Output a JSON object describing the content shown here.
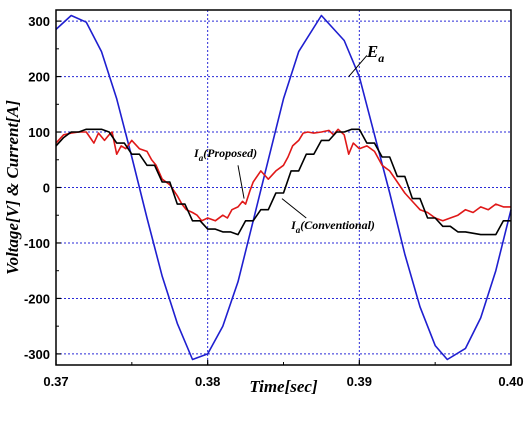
{
  "chart_data": {
    "type": "line",
    "title": "",
    "xlabel": "Time[sec]",
    "ylabel": "Voltage[V] & Current[A]",
    "xlim": [
      0.37,
      0.4
    ],
    "ylim": [
      -320,
      320
    ],
    "x_ticks": [
      0.37,
      0.38,
      0.39,
      0.4
    ],
    "x_tick_labels": [
      "0.37",
      "0.38",
      "0.39",
      "0.40"
    ],
    "y_ticks": [
      -300,
      -200,
      -100,
      0,
      100,
      200,
      300
    ],
    "y_tick_labels": [
      "-300",
      "-200",
      "-100",
      "0",
      "100",
      "200",
      "300"
    ],
    "grid": true,
    "legend": "none",
    "series": [
      {
        "color": "#1f1fd0",
        "points": [
          [
            0.37,
            285
          ],
          [
            0.371,
            310
          ],
          [
            0.372,
            298
          ],
          [
            0.373,
            245
          ],
          [
            0.374,
            160
          ],
          [
            0.375,
            55
          ],
          [
            0.376,
            -55
          ],
          [
            0.377,
            -160
          ],
          [
            0.378,
            -245
          ],
          [
            0.379,
            -310
          ],
          [
            0.38,
            -300
          ],
          [
            0.381,
            -250
          ],
          [
            0.382,
            -170
          ],
          [
            0.383,
            -60
          ],
          [
            0.384,
            50
          ],
          [
            0.385,
            160
          ],
          [
            0.386,
            245
          ],
          [
            0.3875,
            310
          ],
          [
            0.389,
            265
          ],
          [
            0.39,
            200
          ],
          [
            0.391,
            95
          ],
          [
            0.392,
            -10
          ],
          [
            0.393,
            -120
          ],
          [
            0.394,
            -215
          ],
          [
            0.395,
            -285
          ],
          [
            0.3958,
            -310
          ],
          [
            0.397,
            -290
          ],
          [
            0.398,
            -235
          ],
          [
            0.399,
            -150
          ],
          [
            0.4,
            -40
          ]
        ]
      },
      {
        "color": "#e01818",
        "points": [
          [
            0.37,
            80
          ],
          [
            0.3705,
            95
          ],
          [
            0.371,
            98
          ],
          [
            0.3715,
            100
          ],
          [
            0.372,
            100
          ],
          [
            0.3725,
            80
          ],
          [
            0.3728,
            98
          ],
          [
            0.3732,
            85
          ],
          [
            0.3735,
            95
          ],
          [
            0.3737,
            100
          ],
          [
            0.374,
            60
          ],
          [
            0.3743,
            75
          ],
          [
            0.3746,
            70
          ],
          [
            0.375,
            85
          ],
          [
            0.3755,
            70
          ],
          [
            0.376,
            65
          ],
          [
            0.3763,
            50
          ],
          [
            0.3766,
            40
          ],
          [
            0.377,
            15
          ],
          [
            0.3775,
            5
          ],
          [
            0.378,
            -15
          ],
          [
            0.3783,
            -30
          ],
          [
            0.3786,
            -40
          ],
          [
            0.379,
            -45
          ],
          [
            0.3793,
            -50
          ],
          [
            0.3796,
            -60
          ],
          [
            0.38,
            -55
          ],
          [
            0.3805,
            -60
          ],
          [
            0.381,
            -50
          ],
          [
            0.3813,
            -55
          ],
          [
            0.3816,
            -40
          ],
          [
            0.382,
            -35
          ],
          [
            0.3823,
            -25
          ],
          [
            0.3825,
            -30
          ],
          [
            0.3828,
            -5
          ],
          [
            0.383,
            10
          ],
          [
            0.3835,
            30
          ],
          [
            0.384,
            15
          ],
          [
            0.3845,
            30
          ],
          [
            0.385,
            40
          ],
          [
            0.3853,
            55
          ],
          [
            0.3856,
            75
          ],
          [
            0.386,
            85
          ],
          [
            0.3863,
            98
          ],
          [
            0.3866,
            100
          ],
          [
            0.387,
            98
          ],
          [
            0.3875,
            100
          ],
          [
            0.388,
            103
          ],
          [
            0.3883,
            95
          ],
          [
            0.3886,
            105
          ],
          [
            0.389,
            95
          ],
          [
            0.3893,
            60
          ],
          [
            0.3896,
            80
          ],
          [
            0.39,
            70
          ],
          [
            0.3905,
            75
          ],
          [
            0.391,
            65
          ],
          [
            0.3915,
            40
          ],
          [
            0.392,
            30
          ],
          [
            0.3925,
            10
          ],
          [
            0.393,
            -10
          ],
          [
            0.3935,
            -25
          ],
          [
            0.394,
            -40
          ],
          [
            0.3945,
            -45
          ],
          [
            0.395,
            -55
          ],
          [
            0.3955,
            -60
          ],
          [
            0.396,
            -55
          ],
          [
            0.3965,
            -50
          ],
          [
            0.397,
            -40
          ],
          [
            0.3975,
            -45
          ],
          [
            0.398,
            -35
          ],
          [
            0.3985,
            -40
          ],
          [
            0.399,
            -30
          ],
          [
            0.3995,
            -35
          ],
          [
            0.4,
            -35
          ]
        ]
      },
      {
        "color": "#000000",
        "points": [
          [
            0.37,
            75
          ],
          [
            0.3705,
            90
          ],
          [
            0.371,
            100
          ],
          [
            0.3715,
            100
          ],
          [
            0.372,
            105
          ],
          [
            0.373,
            105
          ],
          [
            0.3735,
            100
          ],
          [
            0.374,
            80
          ],
          [
            0.3745,
            80
          ],
          [
            0.375,
            60
          ],
          [
            0.3755,
            60
          ],
          [
            0.376,
            40
          ],
          [
            0.3765,
            40
          ],
          [
            0.377,
            10
          ],
          [
            0.3775,
            10
          ],
          [
            0.378,
            -30
          ],
          [
            0.3785,
            -30
          ],
          [
            0.379,
            -60
          ],
          [
            0.3795,
            -60
          ],
          [
            0.38,
            -75
          ],
          [
            0.3805,
            -75
          ],
          [
            0.381,
            -80
          ],
          [
            0.3815,
            -80
          ],
          [
            0.382,
            -85
          ],
          [
            0.3825,
            -60
          ],
          [
            0.383,
            -60
          ],
          [
            0.3835,
            -40
          ],
          [
            0.384,
            -40
          ],
          [
            0.3845,
            -10
          ],
          [
            0.385,
            -10
          ],
          [
            0.3855,
            30
          ],
          [
            0.386,
            30
          ],
          [
            0.3865,
            60
          ],
          [
            0.387,
            60
          ],
          [
            0.3875,
            85
          ],
          [
            0.388,
            85
          ],
          [
            0.3885,
            100
          ],
          [
            0.389,
            100
          ],
          [
            0.3895,
            105
          ],
          [
            0.39,
            105
          ],
          [
            0.3905,
            80
          ],
          [
            0.391,
            80
          ],
          [
            0.3915,
            55
          ],
          [
            0.392,
            55
          ],
          [
            0.3925,
            20
          ],
          [
            0.393,
            20
          ],
          [
            0.3935,
            -20
          ],
          [
            0.394,
            -20
          ],
          [
            0.3945,
            -55
          ],
          [
            0.395,
            -55
          ],
          [
            0.3955,
            -70
          ],
          [
            0.396,
            -70
          ],
          [
            0.3965,
            -80
          ],
          [
            0.397,
            -80
          ],
          [
            0.398,
            -85
          ],
          [
            0.399,
            -85
          ],
          [
            0.3995,
            -60
          ],
          [
            0.4,
            -60
          ]
        ]
      }
    ],
    "annotations": [
      {
        "label": "E",
        "sub": "a",
        "at": [
          0.3905,
          235
        ]
      },
      {
        "label": "I",
        "sub": "a",
        "suffix": "(Proposed)",
        "at": [
          0.3791,
          55
        ]
      },
      {
        "label": "I",
        "sub": "a",
        "suffix": "(Conventional)",
        "at": [
          0.3855,
          -75
        ]
      }
    ]
  }
}
